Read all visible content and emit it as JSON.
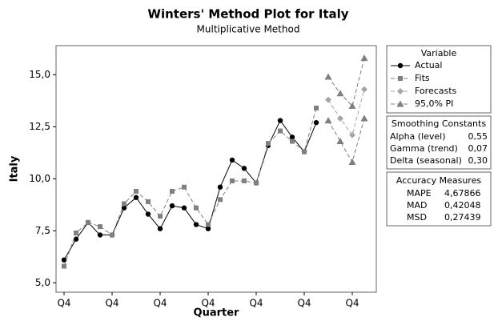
{
  "chart_data": {
    "type": "line",
    "title": "Winters' Method Plot for Italy",
    "subtitle": "Multiplicative Method",
    "x_label": "Quarter",
    "y_label": "Italy",
    "categories": [
      "Q4",
      null,
      null,
      null,
      "Q4",
      null,
      null,
      null,
      "Q4",
      null,
      null,
      null,
      "Q4",
      null,
      null,
      null,
      "Q4",
      null,
      null,
      null,
      "Q4",
      null,
      null,
      null,
      "Q4",
      null
    ],
    "ylim": [
      4.55,
      16.4
    ],
    "yticks": [
      {
        "value": 5,
        "label": "5,0"
      },
      {
        "value": 7.5,
        "label": "7,5"
      },
      {
        "value": 10,
        "label": "10,0"
      },
      {
        "value": 12.5,
        "label": "12,5"
      },
      {
        "value": 15,
        "label": "15,0"
      }
    ],
    "legend_title": "Variable",
    "series": [
      {
        "name": "Actual",
        "color": "#000000",
        "marker": "circle",
        "dashed": false,
        "values": [
          6.1,
          7.1,
          7.9,
          7.3,
          7.3,
          8.6,
          9.1,
          8.3,
          7.6,
          8.7,
          8.6,
          7.8,
          7.6,
          9.6,
          10.9,
          10.5,
          9.8,
          11.6,
          12.8,
          12.0,
          11.3,
          12.7,
          null,
          null,
          null,
          null
        ]
      },
      {
        "name": "Fits",
        "color": "#808080",
        "marker": "square",
        "dashed": true,
        "values": [
          5.8,
          7.4,
          7.9,
          7.7,
          7.3,
          8.8,
          9.4,
          8.9,
          8.2,
          9.4,
          9.6,
          8.6,
          7.8,
          9.0,
          9.9,
          9.9,
          9.8,
          11.7,
          12.3,
          11.8,
          11.3,
          13.4,
          null,
          null,
          null,
          null
        ]
      },
      {
        "name": "Forecasts",
        "color": "#a6a6a6",
        "marker": "diamond",
        "dashed": true,
        "values": [
          null,
          null,
          null,
          null,
          null,
          null,
          null,
          null,
          null,
          null,
          null,
          null,
          null,
          null,
          null,
          null,
          null,
          null,
          null,
          null,
          null,
          null,
          13.8,
          12.9,
          12.1,
          14.3
        ]
      },
      {
        "name": "95,0% PI",
        "color": "#7f7f7f",
        "marker": "triangle",
        "dashed": true,
        "upper": [
          null,
          null,
          null,
          null,
          null,
          null,
          null,
          null,
          null,
          null,
          null,
          null,
          null,
          null,
          null,
          null,
          null,
          null,
          null,
          null,
          null,
          null,
          14.9,
          14.1,
          13.5,
          15.8
        ],
        "lower": [
          null,
          null,
          null,
          null,
          null,
          null,
          null,
          null,
          null,
          null,
          null,
          null,
          null,
          null,
          null,
          null,
          null,
          null,
          null,
          null,
          null,
          null,
          12.8,
          11.8,
          10.8,
          12.9
        ]
      }
    ],
    "smoothing": {
      "title": "Smoothing Constants",
      "rows": [
        [
          "Alpha (level)",
          "0,55"
        ],
        [
          "Gamma (trend)",
          "0,07"
        ],
        [
          "Delta (seasonal)",
          "0,30"
        ]
      ]
    },
    "accuracy": {
      "title": "Accuracy Measures",
      "rows": [
        [
          "MAPE",
          "4,67866"
        ],
        [
          "MAD",
          "0,42048"
        ],
        [
          "MSD",
          "0,27439"
        ]
      ]
    }
  }
}
